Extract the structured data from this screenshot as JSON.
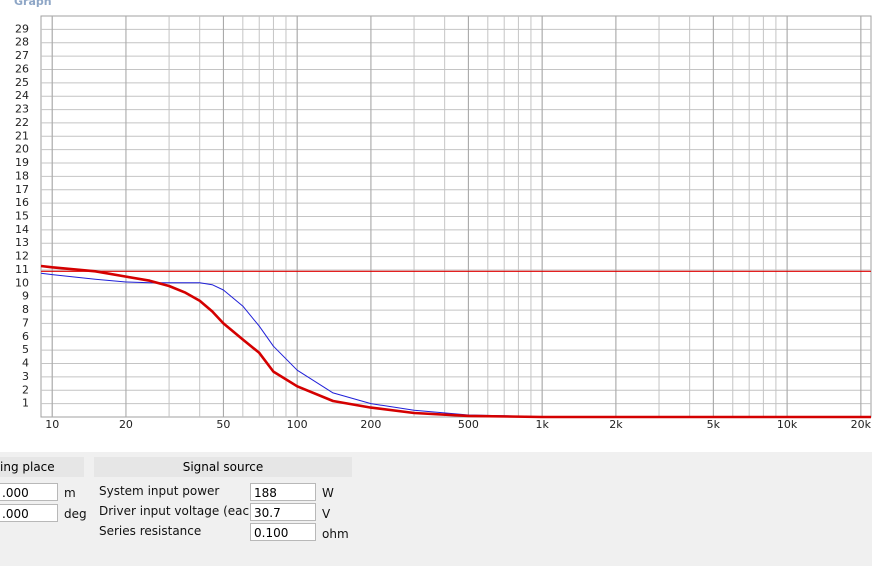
{
  "window": {
    "title": "Graph"
  },
  "chart_data": {
    "type": "line",
    "x": [
      9,
      10,
      15,
      20,
      25,
      30,
      35,
      40,
      45,
      50,
      60,
      70,
      80,
      100,
      140,
      200,
      300,
      500,
      1000,
      2000,
      22000
    ],
    "series": [
      {
        "color": "#e00000",
        "width": 1.2,
        "values": [
          10.9,
          10.9,
          10.9,
          10.9,
          10.9,
          10.9,
          10.9,
          10.9,
          10.9,
          10.9,
          10.9,
          10.9,
          10.9,
          10.9,
          10.9,
          10.9,
          10.9,
          10.9,
          10.9,
          10.9,
          10.9
        ]
      },
      {
        "color": "#1f1fd8",
        "width": 1,
        "values": [
          10.75,
          10.65,
          10.3,
          10.1,
          10.05,
          10.05,
          10.05,
          10.05,
          9.9,
          9.5,
          8.3,
          6.8,
          5.3,
          3.5,
          1.8,
          1.0,
          0.5,
          0.15,
          0.02,
          0,
          0
        ]
      },
      {
        "color": "#d40000",
        "width": 2.6,
        "values": [
          11.3,
          11.2,
          10.9,
          10.5,
          10.2,
          9.8,
          9.3,
          8.7,
          7.9,
          7.0,
          5.8,
          4.8,
          3.4,
          2.3,
          1.2,
          0.7,
          0.3,
          0.08,
          0,
          0,
          0
        ]
      }
    ],
    "xlim": [
      9,
      22000
    ],
    "log_x": true,
    "xticks": [
      10,
      20,
      50,
      100,
      200,
      500,
      {
        "value": 1000,
        "label": "1k"
      },
      {
        "value": 2000,
        "label": "2k"
      },
      {
        "value": 5000,
        "label": "5k"
      },
      {
        "value": 10000,
        "label": "10k"
      },
      {
        "value": 20000,
        "label": "20k"
      }
    ],
    "ylim": [
      0,
      30
    ],
    "yticks": [
      1,
      2,
      3,
      4,
      5,
      6,
      7,
      8,
      9,
      10,
      11,
      12,
      13,
      14,
      15,
      16,
      17,
      18,
      19,
      20,
      21,
      22,
      23,
      24,
      25,
      26,
      27,
      28,
      29
    ],
    "grid": true,
    "minor_grid": true
  },
  "panels": {
    "placement": {
      "header": "ing place",
      "fields": [
        {
          "value": ".000",
          "unit": "m"
        },
        {
          "value": ".000",
          "unit": "deg"
        }
      ]
    },
    "signal": {
      "header": "Signal source",
      "fields": [
        {
          "label": "System input power",
          "value": "188",
          "unit": "W"
        },
        {
          "label": "Driver input voltage (each)",
          "value": "30.7",
          "unit": "V"
        },
        {
          "label": "Series resistance",
          "value": "0.100",
          "unit": "ohm"
        }
      ]
    }
  }
}
